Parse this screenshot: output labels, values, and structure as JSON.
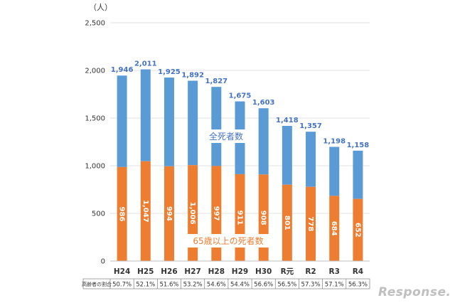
{
  "chart_data": {
    "type": "bar",
    "stacked": true,
    "unit_label": "（人）",
    "categories": [
      "H24",
      "H25",
      "H26",
      "H27",
      "H28",
      "H29",
      "H30",
      "R元",
      "R2",
      "R3",
      "R4"
    ],
    "totals": [
      1946,
      2011,
      1925,
      1892,
      1827,
      1675,
      1603,
      1418,
      1357,
      1198,
      1158
    ],
    "total_labels": [
      "1,946",
      "2,011",
      "1,925",
      "1,892",
      "1,827",
      "1,675",
      "1,603",
      "1,418",
      "1,357",
      "1,198",
      "1,158"
    ],
    "series": [
      {
        "name": "65歳以上の死者数",
        "color": "#ed7d31",
        "values": [
          986,
          1047,
          994,
          1006,
          997,
          911,
          908,
          801,
          778,
          684,
          652
        ],
        "labels": [
          "986",
          "1,047",
          "994",
          "1,006",
          "997",
          "911",
          "908",
          "801",
          "778",
          "684",
          "652"
        ]
      },
      {
        "name": "全死者数",
        "color": "#5b9bd5",
        "values": [
          960,
          964,
          931,
          886,
          830,
          764,
          695,
          617,
          579,
          514,
          506
        ]
      }
    ],
    "ylim": [
      0,
      2500
    ],
    "yticks": [
      0,
      500,
      1000,
      1500,
      2000,
      2500
    ],
    "ytick_labels": [
      "0",
      "500",
      "1,000",
      "1,500",
      "2,000",
      "2,500"
    ],
    "annotations": {
      "total": "全死者数",
      "elderly": "65歳以上の死者数",
      "total_color": "#4472c4",
      "elderly_color": "#ed7d31"
    },
    "ratio_table": {
      "header": "高齢者の割合",
      "values": [
        "50.7%",
        "52.1%",
        "51.6%",
        "53.2%",
        "54.6%",
        "54.4%",
        "56.6%",
        "56.5%",
        "57.3%",
        "57.1%",
        "56.3%"
      ]
    },
    "watermark": "Response."
  }
}
